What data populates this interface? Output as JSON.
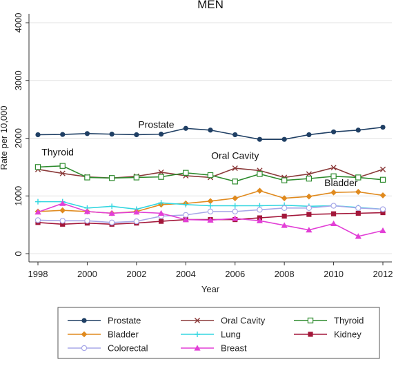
{
  "chart_data": {
    "type": "line",
    "title": "MEN",
    "xlabel": "Year",
    "ylabel": "Rate per 10,000",
    "xlim": [
      1998,
      2012
    ],
    "ylim": [
      0,
      4000
    ],
    "x_ticks": [
      "1998",
      "2000",
      "2002",
      "2004",
      "2006",
      "2008",
      "2010",
      "2012"
    ],
    "y_ticks": [
      "0",
      "1000",
      "2000",
      "3000",
      "4000"
    ],
    "grid": true,
    "legend_position": "bottom",
    "x": [
      1998,
      1999,
      2000,
      2001,
      2002,
      2003,
      2004,
      2005,
      2006,
      2007,
      2008,
      2009,
      2010,
      2011,
      2012
    ],
    "series": [
      {
        "name": "Prostate",
        "color": "#1f3f64",
        "marker": "circle",
        "values": [
          2060,
          2065,
          2080,
          2070,
          2060,
          2070,
          2170,
          2140,
          2060,
          1980,
          1980,
          2060,
          2110,
          2140,
          2190
        ]
      },
      {
        "name": "Oral Cavity",
        "color": "#8b3a3a",
        "marker": "x",
        "values": [
          1460,
          1390,
          1330,
          1310,
          1340,
          1410,
          1350,
          1320,
          1480,
          1440,
          1320,
          1380,
          1490,
          1320,
          1460
        ]
      },
      {
        "name": "Thyroid",
        "color": "#2e8b2e",
        "marker": "square-open",
        "values": [
          1500,
          1520,
          1320,
          1310,
          1320,
          1330,
          1400,
          1360,
          1250,
          1380,
          1270,
          1300,
          1340,
          1320,
          1280
        ]
      },
      {
        "name": "Bladder",
        "color": "#e08a1e",
        "marker": "diamond",
        "values": [
          730,
          750,
          730,
          700,
          730,
          850,
          870,
          910,
          960,
          1090,
          960,
          990,
          1060,
          1070,
          1010
        ]
      },
      {
        "name": "Lung",
        "color": "#33d6e0",
        "marker": "plus",
        "values": [
          900,
          900,
          790,
          820,
          770,
          880,
          850,
          830,
          830,
          830,
          840,
          820,
          830,
          800,
          770
        ]
      },
      {
        "name": "Kidney",
        "color": "#a3173a",
        "marker": "square",
        "values": [
          540,
          510,
          530,
          510,
          530,
          560,
          590,
          590,
          590,
          620,
          650,
          680,
          690,
          700,
          710
        ]
      },
      {
        "name": "Colorectal",
        "color": "#a7a7e8",
        "marker": "circle-open",
        "values": [
          580,
          570,
          570,
          540,
          560,
          650,
          670,
          730,
          730,
          760,
          790,
          790,
          830,
          790,
          770
        ]
      },
      {
        "name": "Breast",
        "color": "#e23fd6",
        "marker": "triangle",
        "values": [
          720,
          870,
          730,
          700,
          720,
          700,
          590,
          580,
          610,
          570,
          490,
          410,
          520,
          300,
          400
        ]
      }
    ],
    "annotations": [
      {
        "text": "Prostate",
        "x": 2002.8,
        "y": 2180
      },
      {
        "text": "Thyroid",
        "x": 1998.8,
        "y": 1700
      },
      {
        "text": "Oral Cavity",
        "x": 2006.0,
        "y": 1640
      },
      {
        "text": "Bladder",
        "x": 2010.3,
        "y": 1170
      }
    ]
  }
}
